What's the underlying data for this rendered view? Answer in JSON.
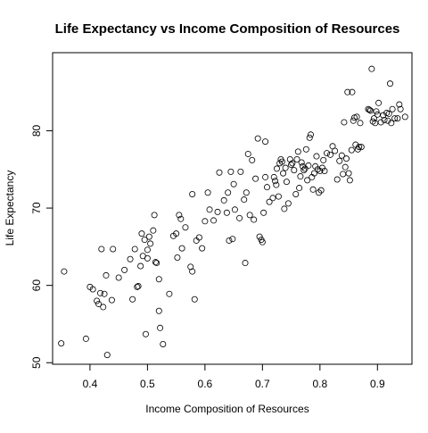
{
  "chart_data": {
    "type": "scatter",
    "title": "Life Expectancy vs  Income Composition of Resources",
    "xlabel": "Income Composition of Resources",
    "ylabel": "Life Expectancy",
    "xlim": [
      0.335,
      0.96
    ],
    "ylim": [
      49.8,
      90.1
    ],
    "xticks": [
      0.4,
      0.5,
      0.6,
      0.7,
      0.8,
      0.9
    ],
    "xtick_labels": [
      "0.4",
      "0.5",
      "0.6",
      "0.7",
      "0.8",
      "0.9"
    ],
    "yticks": [
      50,
      60,
      70,
      80
    ],
    "ytick_labels": [
      "50",
      "60",
      "70",
      "80"
    ],
    "grid": false,
    "marker": "open-circle",
    "points": [
      [
        0.35,
        52.5
      ],
      [
        0.355,
        61.8
      ],
      [
        0.393,
        53.1
      ],
      [
        0.4,
        59.8
      ],
      [
        0.405,
        59.5
      ],
      [
        0.412,
        58.0
      ],
      [
        0.415,
        57.6
      ],
      [
        0.418,
        59.0
      ],
      [
        0.42,
        64.7
      ],
      [
        0.423,
        57.2
      ],
      [
        0.425,
        58.9
      ],
      [
        0.428,
        61.3
      ],
      [
        0.43,
        51.0
      ],
      [
        0.438,
        58.1
      ],
      [
        0.44,
        64.7
      ],
      [
        0.45,
        61.0
      ],
      [
        0.46,
        62.0
      ],
      [
        0.47,
        63.4
      ],
      [
        0.474,
        58.2
      ],
      [
        0.478,
        64.7
      ],
      [
        0.482,
        59.8
      ],
      [
        0.484,
        59.9
      ],
      [
        0.488,
        62.5
      ],
      [
        0.49,
        66.7
      ],
      [
        0.492,
        63.8
      ],
      [
        0.495,
        65.9
      ],
      [
        0.497,
        53.7
      ],
      [
        0.5,
        63.5
      ],
      [
        0.5,
        64.6
      ],
      [
        0.503,
        66.3
      ],
      [
        0.505,
        65.4
      ],
      [
        0.51,
        67.1
      ],
      [
        0.512,
        69.1
      ],
      [
        0.514,
        63.0
      ],
      [
        0.516,
        62.9
      ],
      [
        0.52,
        56.7
      ],
      [
        0.52,
        60.8
      ],
      [
        0.522,
        54.5
      ],
      [
        0.527,
        52.4
      ],
      [
        0.538,
        58.9
      ],
      [
        0.545,
        66.4
      ],
      [
        0.55,
        66.7
      ],
      [
        0.552,
        63.6
      ],
      [
        0.555,
        69.1
      ],
      [
        0.558,
        68.6
      ],
      [
        0.56,
        64.8
      ],
      [
        0.566,
        67.5
      ],
      [
        0.575,
        62.4
      ],
      [
        0.578,
        61.8
      ],
      [
        0.578,
        71.8
      ],
      [
        0.582,
        58.2
      ],
      [
        0.585,
        65.8
      ],
      [
        0.59,
        66.2
      ],
      [
        0.595,
        64.8
      ],
      [
        0.6,
        68.3
      ],
      [
        0.605,
        72.0
      ],
      [
        0.608,
        69.8
      ],
      [
        0.615,
        68.4
      ],
      [
        0.622,
        69.5
      ],
      [
        0.625,
        74.6
      ],
      [
        0.633,
        71.0
      ],
      [
        0.638,
        69.4
      ],
      [
        0.64,
        72.0
      ],
      [
        0.642,
        65.8
      ],
      [
        0.645,
        74.7
      ],
      [
        0.648,
        66.0
      ],
      [
        0.65,
        73.1
      ],
      [
        0.652,
        69.8
      ],
      [
        0.66,
        68.7
      ],
      [
        0.662,
        74.7
      ],
      [
        0.668,
        71.1
      ],
      [
        0.67,
        62.9
      ],
      [
        0.672,
        72.0
      ],
      [
        0.675,
        77.0
      ],
      [
        0.678,
        69.1
      ],
      [
        0.682,
        76.2
      ],
      [
        0.685,
        68.5
      ],
      [
        0.688,
        73.8
      ],
      [
        0.692,
        79.0
      ],
      [
        0.695,
        66.3
      ],
      [
        0.698,
        65.9
      ],
      [
        0.7,
        65.6
      ],
      [
        0.702,
        69.4
      ],
      [
        0.705,
        74.0
      ],
      [
        0.705,
        78.6
      ],
      [
        0.708,
        72.7
      ],
      [
        0.712,
        70.8
      ],
      [
        0.718,
        71.3
      ],
      [
        0.72,
        74.0
      ],
      [
        0.722,
        73.5
      ],
      [
        0.724,
        73.0
      ],
      [
        0.725,
        75.1
      ],
      [
        0.728,
        71.5
      ],
      [
        0.73,
        75.8
      ],
      [
        0.732,
        76.3
      ],
      [
        0.734,
        76.0
      ],
      [
        0.736,
        74.5
      ],
      [
        0.738,
        69.9
      ],
      [
        0.74,
        75.2
      ],
      [
        0.742,
        73.4
      ],
      [
        0.745,
        70.6
      ],
      [
        0.748,
        76.3
      ],
      [
        0.75,
        75.6
      ],
      [
        0.752,
        75.8
      ],
      [
        0.755,
        74.9
      ],
      [
        0.758,
        71.8
      ],
      [
        0.76,
        76.3
      ],
      [
        0.762,
        77.3
      ],
      [
        0.764,
        72.6
      ],
      [
        0.766,
        74.1
      ],
      [
        0.768,
        75.9
      ],
      [
        0.77,
        75.4
      ],
      [
        0.772,
        74.9
      ],
      [
        0.774,
        75.1
      ],
      [
        0.776,
        77.6
      ],
      [
        0.778,
        73.6
      ],
      [
        0.78,
        75.5
      ],
      [
        0.782,
        79.1
      ],
      [
        0.784,
        79.5
      ],
      [
        0.786,
        74.0
      ],
      [
        0.788,
        72.4
      ],
      [
        0.79,
        74.5
      ],
      [
        0.792,
        75.4
      ],
      [
        0.794,
        76.7
      ],
      [
        0.796,
        75.0
      ],
      [
        0.798,
        72.0
      ],
      [
        0.8,
        74.8
      ],
      [
        0.802,
        72.3
      ],
      [
        0.804,
        75.2
      ],
      [
        0.806,
        76.2
      ],
      [
        0.808,
        74.8
      ],
      [
        0.812,
        77.1
      ],
      [
        0.818,
        76.9
      ],
      [
        0.822,
        78.0
      ],
      [
        0.826,
        77.4
      ],
      [
        0.83,
        73.7
      ],
      [
        0.834,
        76.1
      ],
      [
        0.838,
        76.8
      ],
      [
        0.84,
        74.4
      ],
      [
        0.842,
        81.1
      ],
      [
        0.844,
        75.3
      ],
      [
        0.846,
        76.4
      ],
      [
        0.848,
        85.0
      ],
      [
        0.85,
        74.5
      ],
      [
        0.852,
        73.6
      ],
      [
        0.855,
        77.5
      ],
      [
        0.856,
        85.0
      ],
      [
        0.858,
        81.3
      ],
      [
        0.86,
        81.7
      ],
      [
        0.862,
        78.2
      ],
      [
        0.864,
        81.8
      ],
      [
        0.866,
        77.6
      ],
      [
        0.868,
        77.9
      ],
      [
        0.87,
        81.0
      ],
      [
        0.872,
        77.9
      ],
      [
        0.884,
        82.8
      ],
      [
        0.886,
        82.7
      ],
      [
        0.888,
        82.6
      ],
      [
        0.89,
        88.0
      ],
      [
        0.892,
        81.2
      ],
      [
        0.894,
        81.6
      ],
      [
        0.896,
        81.0
      ],
      [
        0.898,
        82.5
      ],
      [
        0.9,
        82.1
      ],
      [
        0.902,
        83.6
      ],
      [
        0.906,
        81.1
      ],
      [
        0.91,
        82.0
      ],
      [
        0.912,
        81.4
      ],
      [
        0.916,
        82.3
      ],
      [
        0.918,
        81.3
      ],
      [
        0.92,
        82.2
      ],
      [
        0.922,
        86.1
      ],
      [
        0.924,
        81.0
      ],
      [
        0.926,
        82.8
      ],
      [
        0.93,
        81.6
      ],
      [
        0.935,
        81.6
      ],
      [
        0.938,
        83.4
      ],
      [
        0.94,
        82.8
      ],
      [
        0.948,
        81.8
      ]
    ]
  }
}
